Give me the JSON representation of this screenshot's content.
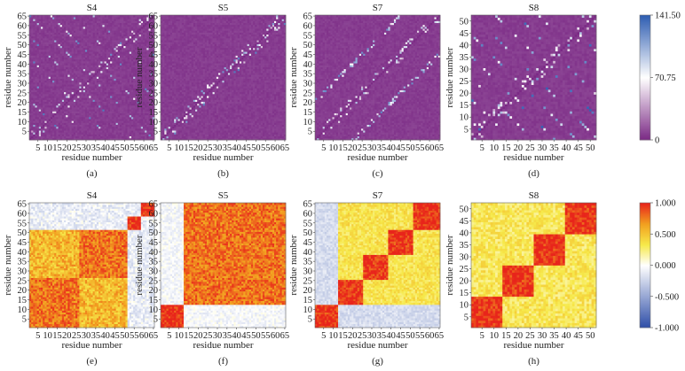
{
  "figure": {
    "rows": [
      {
        "type": "heatmap",
        "panels": [
          {
            "title": "S4",
            "label": "(a)",
            "n": 65,
            "xlabel": "residue number",
            "ylabel": "residue number",
            "xticks": [
              5,
              10,
              15,
              20,
              25,
              30,
              35,
              40,
              45,
              50,
              55,
              60,
              65
            ],
            "yticks": [
              5,
              10,
              15,
              20,
              25,
              30,
              35,
              40,
              45,
              50,
              55,
              60,
              65
            ],
            "blocks": [],
            "cutoff": 52
          },
          {
            "title": "S5",
            "label": "(b)",
            "n": 65,
            "xlabel": "residue number",
            "ylabel": "residue number",
            "xticks": [
              5,
              10,
              15,
              20,
              25,
              30,
              35,
              40,
              45,
              50,
              55,
              60,
              65
            ],
            "yticks": [
              5,
              10,
              15,
              20,
              25,
              30,
              35,
              40,
              45,
              50,
              55,
              60,
              65
            ],
            "blocks": [],
            "cutoff": 65
          },
          {
            "title": "S7",
            "label": "(c)",
            "n": 65,
            "xlabel": "residue number",
            "ylabel": "residue number",
            "xticks": [
              5,
              10,
              15,
              20,
              25,
              30,
              35,
              40,
              45,
              50,
              55,
              60,
              65
            ],
            "yticks": [
              5,
              10,
              15,
              20,
              25,
              30,
              35,
              40,
              45,
              50,
              55,
              60,
              65
            ],
            "blocks": [],
            "cutoff": 65
          },
          {
            "title": "S8",
            "label": "(d)",
            "n": 52,
            "xlabel": "residue number",
            "ylabel": "residue number",
            "xticks": [
              5,
              10,
              15,
              20,
              25,
              30,
              35,
              40,
              45,
              50
            ],
            "yticks": [
              5,
              10,
              15,
              20,
              25,
              30,
              35,
              40,
              45,
              50
            ],
            "blocks": [],
            "cutoff": 52
          }
        ],
        "colorbar": {
          "ticks": [
            "141.50",
            "70.75",
            "0"
          ],
          "min": 0,
          "max": 141.5,
          "stops": [
            "#7b2a85",
            "#ffffff",
            "#2f5eb2"
          ]
        }
      },
      {
        "type": "heatmap",
        "panels": [
          {
            "title": "S4",
            "label": "(e)",
            "n": 65,
            "xlabel": "residue number",
            "ylabel": "residue number",
            "xticks": [
              5,
              10,
              15,
              20,
              25,
              30,
              35,
              40,
              45,
              50,
              55,
              60,
              65
            ],
            "yticks": [
              5,
              10,
              15,
              20,
              25,
              30,
              35,
              40,
              45,
              50,
              55,
              60,
              65
            ],
            "blocks": [
              [
                1,
                26
              ],
              [
                27,
                51
              ],
              [
                52,
                58
              ],
              [
                59,
                65
              ]
            ]
          },
          {
            "title": "S5",
            "label": "(f)",
            "n": 65,
            "xlabel": "residue number",
            "ylabel": "residue number",
            "xticks": [
              5,
              10,
              15,
              20,
              25,
              30,
              35,
              40,
              45,
              50,
              55,
              60,
              65
            ],
            "yticks": [
              5,
              10,
              15,
              20,
              25,
              30,
              35,
              40,
              45,
              50,
              55,
              60,
              65
            ],
            "blocks": [
              [
                1,
                12
              ],
              [
                13,
                65
              ]
            ]
          },
          {
            "title": "S7",
            "label": "(g)",
            "n": 65,
            "xlabel": "residue number",
            "ylabel": "residue number",
            "xticks": [
              5,
              10,
              15,
              20,
              25,
              30,
              35,
              40,
              45,
              50,
              55,
              60,
              65
            ],
            "yticks": [
              5,
              10,
              15,
              20,
              25,
              30,
              35,
              40,
              45,
              50,
              55,
              60,
              65
            ],
            "blocks": [
              [
                1,
                12
              ],
              [
                13,
                25
              ],
              [
                26,
                38
              ],
              [
                39,
                51
              ],
              [
                52,
                65
              ]
            ]
          },
          {
            "title": "S8",
            "label": "(h)",
            "n": 52,
            "xlabel": "residue number",
            "ylabel": "residue number",
            "xticks": [
              5,
              10,
              15,
              20,
              25,
              30,
              35,
              40,
              45,
              50
            ],
            "yticks": [
              5,
              10,
              15,
              20,
              25,
              30,
              35,
              40,
              45,
              50
            ],
            "blocks": [
              [
                1,
                13
              ],
              [
                14,
                26
              ],
              [
                27,
                39
              ],
              [
                40,
                52
              ]
            ]
          }
        ],
        "colorbar": {
          "ticks": [
            "1.000",
            "0.500",
            "0.000",
            "-0.500",
            "-1.000"
          ],
          "min": -1,
          "max": 1,
          "stops": [
            "#2f4fa8",
            "#ffffff",
            "#f6e94a",
            "#f2a020",
            "#e8251b"
          ]
        }
      }
    ]
  },
  "chart_data": [
    {
      "type": "heatmap",
      "title": "S4",
      "panel_label": "(a)",
      "xlabel": "residue number",
      "ylabel": "residue number",
      "xlim": [
        1,
        65
      ],
      "ylim": [
        1,
        65
      ],
      "value_range": [
        0,
        141.5
      ]
    },
    {
      "type": "heatmap",
      "title": "S5",
      "panel_label": "(b)",
      "xlabel": "residue number",
      "ylabel": "residue number",
      "xlim": [
        1,
        65
      ],
      "ylim": [
        1,
        65
      ],
      "value_range": [
        0,
        141.5
      ]
    },
    {
      "type": "heatmap",
      "title": "S7",
      "panel_label": "(c)",
      "xlabel": "residue number",
      "ylabel": "residue number",
      "xlim": [
        1,
        65
      ],
      "ylim": [
        1,
        65
      ],
      "value_range": [
        0,
        141.5
      ]
    },
    {
      "type": "heatmap",
      "title": "S8",
      "panel_label": "(d)",
      "xlabel": "residue number",
      "ylabel": "residue number",
      "xlim": [
        1,
        52
      ],
      "ylim": [
        1,
        52
      ],
      "value_range": [
        0,
        141.5
      ]
    },
    {
      "type": "heatmap",
      "title": "S4",
      "panel_label": "(e)",
      "xlabel": "residue number",
      "ylabel": "residue number",
      "xlim": [
        1,
        65
      ],
      "ylim": [
        1,
        65
      ],
      "value_range": [
        -1,
        1
      ],
      "correlated_blocks": [
        [
          1,
          26
        ],
        [
          27,
          51
        ],
        [
          52,
          58
        ],
        [
          59,
          65
        ]
      ]
    },
    {
      "type": "heatmap",
      "title": "S5",
      "panel_label": "(f)",
      "xlabel": "residue number",
      "ylabel": "residue number",
      "xlim": [
        1,
        65
      ],
      "ylim": [
        1,
        65
      ],
      "value_range": [
        -1,
        1
      ],
      "correlated_blocks": [
        [
          1,
          12
        ],
        [
          13,
          65
        ]
      ]
    },
    {
      "type": "heatmap",
      "title": "S7",
      "panel_label": "(g)",
      "xlabel": "residue number",
      "ylabel": "residue number",
      "xlim": [
        1,
        65
      ],
      "ylim": [
        1,
        65
      ],
      "value_range": [
        -1,
        1
      ],
      "correlated_blocks": [
        [
          1,
          12
        ],
        [
          13,
          25
        ],
        [
          26,
          38
        ],
        [
          39,
          51
        ],
        [
          52,
          65
        ]
      ]
    },
    {
      "type": "heatmap",
      "title": "S8",
      "panel_label": "(h)",
      "xlabel": "residue number",
      "ylabel": "residue number",
      "xlim": [
        1,
        52
      ],
      "ylim": [
        1,
        52
      ],
      "value_range": [
        -1,
        1
      ],
      "correlated_blocks": [
        [
          1,
          13
        ],
        [
          14,
          26
        ],
        [
          27,
          39
        ],
        [
          40,
          52
        ]
      ]
    }
  ]
}
